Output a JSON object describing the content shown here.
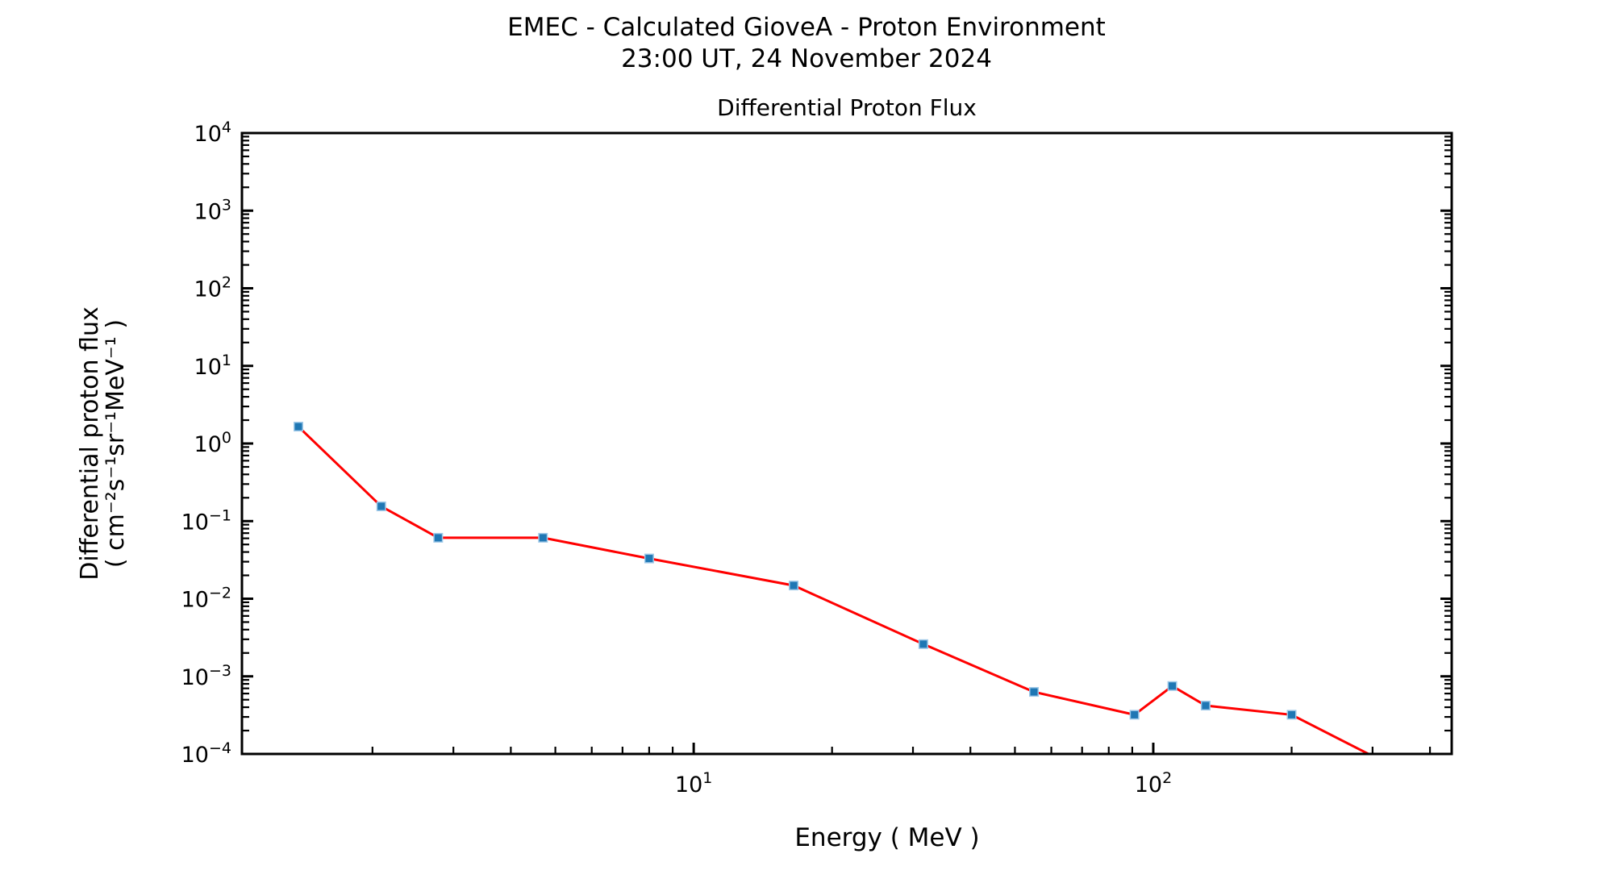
{
  "header": {
    "title": "EMEC - Calculated GioveA - Proton Environment",
    "datetime": "23:00 UT, 24 November 2024"
  },
  "chart_data": {
    "type": "line",
    "title": "Differential Proton Flux",
    "xlabel": "Energy ( MeV )",
    "ylabel_line1": "Differential proton flux",
    "ylabel_line2": "( cm⁻²s⁻¹sr⁻¹MeV⁻¹ )",
    "x_scale": "log",
    "y_scale": "log",
    "xlim": [
      1.04,
      446
    ],
    "ylim": [
      0.0001,
      10000
    ],
    "x_major_tick_exponents": [
      1,
      2
    ],
    "y_major_tick_exponents": [
      4,
      3,
      2,
      1,
      0,
      -1,
      -2,
      -3,
      -4
    ],
    "grid": false,
    "legend": "none",
    "line_color": "#ff0000",
    "marker_color": "#1f77b4",
    "marker_edge_color": "#9dc8e8",
    "axis_color": "#000000",
    "series": [
      {
        "name": "Differential Proton Flux",
        "x": [
          1.38,
          2.09,
          2.78,
          4.7,
          8.0,
          16.5,
          31.6,
          55,
          91,
          110,
          130,
          200,
          300
        ],
        "y": [
          1.65,
          0.155,
          0.061,
          0.061,
          0.033,
          0.0148,
          0.0026,
          0.00063,
          0.00032,
          0.00075,
          0.00042,
          0.00032,
          9.4e-05
        ]
      }
    ]
  }
}
